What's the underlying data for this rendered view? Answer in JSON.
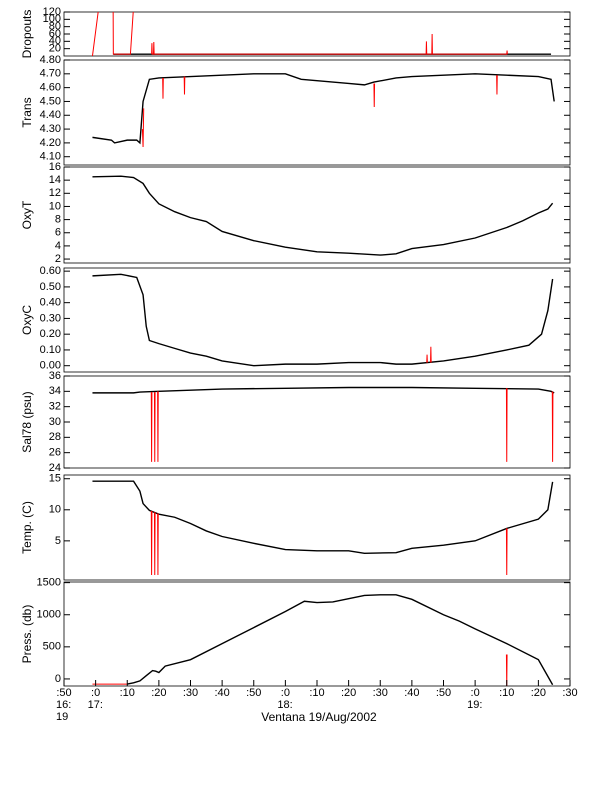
{
  "chart_data": [
    {
      "type": "line",
      "ylabel": "Dropouts",
      "xlim": [
        -10,
        150
      ],
      "ylim": [
        0,
        120
      ],
      "yticks": [
        20,
        40,
        60,
        80,
        100,
        120
      ],
      "series": [
        {
          "color": "#000000",
          "x": [
            5.6,
            20,
            40,
            60,
            80,
            100,
            120,
            130,
            144
          ],
          "values": [
            5,
            5,
            5,
            5,
            5,
            5,
            5,
            5,
            5
          ]
        },
        {
          "color": "#ff0000",
          "x": [
            -1,
            2,
            3,
            5.5,
            5.6,
            11,
            12.5,
            13,
            17.7,
            17.8,
            17.9,
            18.3,
            18.4,
            18.5,
            104.5,
            104.6,
            104.7,
            106.3,
            106.4,
            106.5,
            130,
            130.1,
            130.2
          ],
          "values": [
            0,
            200,
            null,
            200,
            5,
            5,
            200,
            null,
            5,
            35,
            5,
            5,
            38,
            5,
            5,
            40,
            5,
            5,
            60,
            5,
            5,
            15,
            5
          ]
        }
      ]
    },
    {
      "type": "line",
      "ylabel": "Trans",
      "xlim": [
        -10,
        150
      ],
      "ylim": [
        4.04,
        4.8
      ],
      "yticks": [
        {
          "value": 4.1,
          "label": "4.10"
        },
        {
          "value": 4.2,
          "label": "4.20"
        },
        {
          "value": 4.3,
          "label": "4.30"
        },
        {
          "value": 4.4,
          "label": "4.40"
        },
        {
          "value": 4.5,
          "label": "4.50"
        },
        {
          "value": 4.6,
          "label": "4.60"
        },
        {
          "value": 4.7,
          "label": "4.70"
        },
        {
          "value": 4.8,
          "label": "4.80"
        }
      ],
      "series": [
        {
          "color": "#000000",
          "x": [
            -1,
            5,
            6,
            10,
            13,
            14,
            15,
            17,
            20,
            30,
            40,
            50,
            60,
            65,
            70,
            80,
            85,
            88,
            95,
            100,
            110,
            120,
            130,
            140,
            144,
            145
          ],
          "values": [
            4.24,
            4.22,
            4.2,
            4.22,
            4.22,
            4.2,
            4.5,
            4.66,
            4.67,
            4.68,
            4.69,
            4.7,
            4.7,
            4.66,
            4.65,
            4.63,
            4.62,
            4.64,
            4.67,
            4.68,
            4.69,
            4.7,
            4.69,
            4.68,
            4.66,
            4.5
          ]
        },
        {
          "color": "#ff0000",
          "x": [
            14.8,
            15,
            15.2,
            16,
            21.2,
            21.3,
            21.4,
            22,
            28,
            28.1,
            28.2,
            29,
            88,
            88.1,
            88.2,
            89,
            126.8,
            126.9,
            127
          ],
          "values": [
            4.3,
            4.17,
            4.45,
            null,
            4.67,
            4.52,
            4.67,
            null,
            4.68,
            4.55,
            4.68,
            null,
            4.63,
            4.46,
            4.63,
            null,
            4.69,
            4.55,
            4.69
          ]
        }
      ]
    },
    {
      "type": "line",
      "ylabel": "OxyT",
      "xlim": [
        -10,
        150
      ],
      "ylim": [
        1.4,
        16
      ],
      "yticks": [
        2,
        4,
        6,
        8,
        10,
        12,
        14,
        16
      ],
      "series": [
        {
          "color": "#000000",
          "x": [
            -1,
            8,
            12,
            15,
            17,
            20,
            25,
            30,
            35,
            40,
            50,
            60,
            70,
            80,
            90,
            95,
            100,
            110,
            120,
            130,
            135,
            140,
            143,
            144.5
          ],
          "values": [
            14.5,
            14.6,
            14.4,
            13.5,
            12,
            10.4,
            9.2,
            8.3,
            7.7,
            6.2,
            4.8,
            3.8,
            3.1,
            2.9,
            2.6,
            2.8,
            3.6,
            4.2,
            5.2,
            6.8,
            7.8,
            9,
            9.6,
            10.5
          ]
        }
      ]
    },
    {
      "type": "line",
      "ylabel": "OxyC",
      "xlim": [
        -10,
        150
      ],
      "ylim": [
        -0.04,
        0.62
      ],
      "yticks": [
        {
          "value": 0,
          "label": "0.00"
        },
        {
          "value": 0.1,
          "label": "0.10"
        },
        {
          "value": 0.2,
          "label": "0.20"
        },
        {
          "value": 0.3,
          "label": "0.30"
        },
        {
          "value": 0.4,
          "label": "0.40"
        },
        {
          "value": 0.5,
          "label": "0.50"
        },
        {
          "value": 0.6,
          "label": "0.60"
        }
      ],
      "series": [
        {
          "color": "#000000",
          "x": [
            -1,
            8,
            13,
            15,
            16,
            17,
            20,
            25,
            30,
            35,
            40,
            50,
            60,
            70,
            80,
            90,
            95,
            100,
            110,
            120,
            130,
            137,
            141,
            143,
            144.5
          ],
          "values": [
            0.57,
            0.58,
            0.56,
            0.45,
            0.25,
            0.16,
            0.14,
            0.11,
            0.08,
            0.06,
            0.03,
            0,
            0.01,
            0.01,
            0.02,
            0.02,
            0.01,
            0.01,
            0.03,
            0.06,
            0.1,
            0.13,
            0.2,
            0.35,
            0.55
          ]
        },
        {
          "color": "#ff0000",
          "x": [
            104.7,
            104.8,
            104.9,
            105,
            105.9,
            106,
            106.1
          ],
          "values": [
            0.02,
            0.07,
            0.02,
            null,
            0.02,
            0.12,
            0.02
          ]
        }
      ]
    },
    {
      "type": "line",
      "ylabel": "Sal78 (psu)",
      "xlim": [
        -10,
        150
      ],
      "ylim": [
        24,
        36
      ],
      "yticks": [
        24,
        26,
        28,
        30,
        32,
        34,
        36
      ],
      "series": [
        {
          "color": "#000000",
          "x": [
            -1,
            12,
            14,
            20,
            40,
            60,
            80,
            100,
            120,
            140,
            144,
            145
          ],
          "values": [
            33.8,
            33.8,
            33.9,
            34,
            34.3,
            34.4,
            34.5,
            34.5,
            34.4,
            34.3,
            34,
            33.8
          ]
        },
        {
          "color": "#ff0000",
          "x": [
            17.6,
            17.7,
            17.8,
            18,
            18.6,
            18.7,
            18.8,
            19,
            19.6,
            19.7,
            19.8,
            20,
            129.9,
            130,
            130.1,
            131,
            144.4,
            144.5,
            144.6
          ],
          "values": [
            33.9,
            24.8,
            33.9,
            null,
            33.9,
            24.8,
            33.9,
            null,
            34,
            24.8,
            34,
            null,
            34.4,
            24.8,
            34.4,
            null,
            34,
            24.8,
            33.9
          ]
        }
      ]
    },
    {
      "type": "line",
      "ylabel": "Temp. (C)",
      "xlim": [
        -10,
        150
      ],
      "ylim": [
        -1.3,
        15.6
      ],
      "yticks": [
        5,
        10,
        15
      ],
      "series": [
        {
          "color": "#000000",
          "x": [
            -1,
            12,
            14,
            15,
            17,
            20,
            25,
            30,
            35,
            40,
            50,
            60,
            70,
            80,
            85,
            95,
            100,
            110,
            120,
            130,
            140,
            143,
            144.5
          ],
          "values": [
            14.6,
            14.6,
            13,
            11,
            9.9,
            9.3,
            8.8,
            7.8,
            6.6,
            5.7,
            4.6,
            3.6,
            3.4,
            3.4,
            3,
            3.1,
            3.8,
            4.3,
            5,
            7,
            8.5,
            10,
            14.5
          ]
        },
        {
          "color": "#ff0000",
          "x": [
            17.6,
            17.7,
            17.8,
            18,
            18.6,
            18.7,
            18.8,
            19,
            19.6,
            19.7,
            19.8,
            20,
            129.9,
            130,
            130.1
          ],
          "values": [
            9.8,
            -0.5,
            9.8,
            null,
            9.6,
            -0.5,
            9.6,
            null,
            9.4,
            -0.5,
            9.4,
            null,
            7,
            -0.5,
            7
          ]
        }
      ]
    },
    {
      "type": "line",
      "ylabel": "Press. (db)",
      "xlabel": "Ventana 19/Aug/2002",
      "xlim": [
        -10,
        150
      ],
      "ylim": [
        -110,
        1510
      ],
      "yticks": [
        0,
        500,
        1000,
        1500
      ],
      "xticks": [
        {
          "value": -10,
          "label": ":50"
        },
        {
          "value": 0,
          "label": ":0"
        },
        {
          "value": 10,
          "label": ":10"
        },
        {
          "value": 20,
          "label": ":20"
        },
        {
          "value": 30,
          "label": ":30"
        },
        {
          "value": 40,
          "label": ":40"
        },
        {
          "value": 50,
          "label": ":50"
        },
        {
          "value": 60,
          "label": ":0"
        },
        {
          "value": 70,
          "label": ":10"
        },
        {
          "value": 80,
          "label": ":20"
        },
        {
          "value": 90,
          "label": ":30"
        },
        {
          "value": 100,
          "label": ":40"
        },
        {
          "value": 110,
          "label": ":50"
        },
        {
          "value": 120,
          "label": ":0"
        },
        {
          "value": 130,
          "label": ":10"
        },
        {
          "value": 140,
          "label": ":20"
        },
        {
          "value": 150,
          "label": ":30"
        }
      ],
      "xtick_hours": [
        {
          "value": -10,
          "label": "16:"
        },
        {
          "value": 0,
          "label": "17:"
        },
        {
          "value": 60,
          "label": "18:"
        },
        {
          "value": 120,
          "label": "19:"
        }
      ],
      "day_label": "19",
      "series": [
        {
          "color": "#000000",
          "x": [
            10,
            12,
            14,
            16,
            18,
            19,
            20,
            22,
            30,
            40,
            50,
            60,
            66,
            70,
            75,
            80,
            85,
            90,
            95,
            100,
            110,
            115,
            120,
            130,
            140,
            144.5
          ],
          "values": [
            -80,
            -60,
            -30,
            50,
            130,
            120,
            100,
            200,
            300,
            550,
            800,
            1050,
            1210,
            1190,
            1200,
            1250,
            1300,
            1310,
            1310,
            1240,
            1000,
            900,
            780,
            550,
            300,
            -90
          ]
        },
        {
          "color": "#ff0000",
          "x": [
            -1,
            10,
            11,
            129.9,
            130,
            130.1
          ],
          "values": [
            -80,
            -80,
            null,
            380,
            -110,
            380
          ]
        }
      ]
    }
  ]
}
